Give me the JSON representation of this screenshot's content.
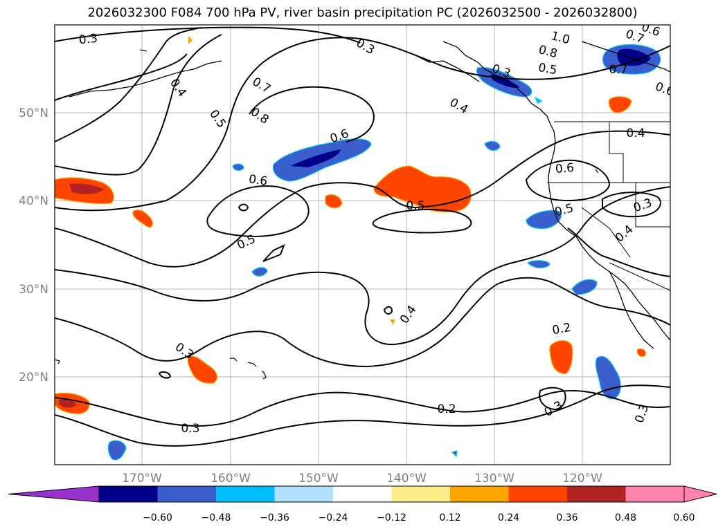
{
  "title": "2026032300 F084 700 hPa PV, river basin precipitation PC (2026032500 - 2026032800)",
  "map": {
    "lon_ticks": [
      "170°W",
      "160°W",
      "150°W",
      "140°W",
      "130°W",
      "120°W"
    ],
    "lat_ticks": [
      "50°N",
      "40°N",
      "30°N",
      "20°N"
    ],
    "extent": {
      "lon": [
        -180,
        -110
      ],
      "lat": [
        10,
        60
      ]
    },
    "gridlines": true
  },
  "colorbar": {
    "ticks": [
      "−0.60",
      "−0.48",
      "−0.36",
      "−0.24",
      "−0.12",
      "0.12",
      "0.24",
      "0.36",
      "0.48",
      "0.60"
    ],
    "colors": [
      "#9932cc",
      "#00008b",
      "#3a5fcd",
      "#00bfff",
      "#b0e2ff",
      "#ffffff",
      "#ffec8b",
      "#ffa500",
      "#ff4500",
      "#b22222",
      "#ff82ab"
    ],
    "extend": "both"
  },
  "contour_labels": [
    "0.3",
    "0.3",
    "0.4",
    "0.5",
    "0.7",
    "0.8",
    "0.6",
    "0.4",
    "1.0",
    "0.8",
    "0.5",
    "0.3",
    "0.6",
    "0.7",
    "0.7",
    "0.6",
    "0.5",
    "0.6",
    "0.4",
    "0.6",
    "0.5",
    "0.3",
    "0.4",
    "0.5",
    "0.4",
    "0.2",
    "0.3",
    "0.3",
    "0.2",
    "0.3",
    "0.3"
  ]
}
